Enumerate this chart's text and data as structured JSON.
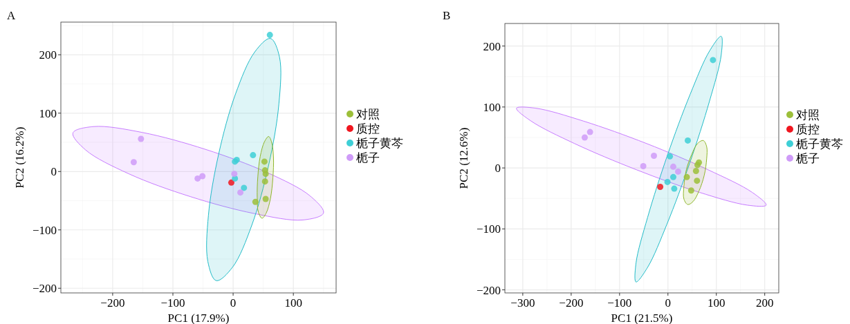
{
  "chart_data": [
    {
      "type": "scatter",
      "title": "A",
      "xlabel": "PC1 (17.9%)",
      "ylabel": "PC2 (16.2%)",
      "xlim": [
        -286,
        171
      ],
      "ylim": [
        -208,
        256
      ],
      "xticks": [
        -200,
        -100,
        0,
        100
      ],
      "yticks": [
        -200,
        -100,
        0,
        100,
        200
      ],
      "grid": true,
      "legend": "right",
      "series": [
        {
          "type": "area",
          "marker": "none",
          "color": "#c77cff",
          "x": [
            150,
            116,
            35,
            -71,
            -173,
            -245,
            -266,
            -232,
            -151,
            -46,
            57,
            128
          ],
          "values": [
            -71,
            -83,
            -72,
            -43,
            -4,
            37,
            66,
            77,
            67,
            38,
            -2,
            -42
          ]
        },
        {
          "type": "area",
          "marker": "none",
          "color": "#22bcc8",
          "x": [
            62,
            77,
            76,
            59,
            31,
            -1,
            -28,
            -42,
            -41,
            -24,
            4,
            36
          ],
          "values": [
            228,
            196,
            116,
            11,
            -92,
            -164,
            -187,
            -154,
            -75,
            30,
            133,
            205
          ]
        },
        {
          "type": "area",
          "marker": "none",
          "color": "#8fb62a",
          "x": [
            59,
            64,
            67,
            66,
            62,
            55,
            48,
            42,
            40,
            41,
            45,
            52
          ],
          "values": [
            60,
            50,
            24,
            -11,
            -46,
            -71,
            -80,
            -70,
            -44,
            -9,
            26,
            51
          ]
        },
        {
          "name": "对照",
          "marker": "circle",
          "color": "#9cbf3a",
          "x": [
            52,
            53,
            54,
            53,
            54,
            37
          ],
          "values": [
            17,
            2,
            -4,
            -17,
            -47,
            -52
          ]
        },
        {
          "name": "质控",
          "marker": "circle",
          "color": "#f0161f",
          "x": [
            -3
          ],
          "values": [
            -19
          ]
        },
        {
          "name": "栀子黄芩",
          "marker": "circle",
          "color": "#3ecfd6",
          "x": [
            61,
            33,
            6,
            3,
            3,
            18
          ],
          "values": [
            234,
            28,
            20,
            17,
            -12,
            -28
          ]
        },
        {
          "name": "栀子",
          "marker": "circle",
          "color": "#cf9bf8",
          "x": [
            -153,
            -165,
            -59,
            -51,
            2,
            12
          ],
          "values": [
            56,
            16,
            -12,
            -8,
            -4,
            -36
          ]
        }
      ]
    },
    {
      "type": "scatter",
      "title": "B",
      "xlabel": "PC1 (21.5%)",
      "ylabel": "PC2 (12.6%)",
      "xlim": [
        -337,
        229
      ],
      "ylim": [
        -205,
        237
      ],
      "xticks": [
        -300,
        -200,
        -100,
        0,
        100,
        200
      ],
      "yticks": [
        -200,
        -100,
        0,
        100,
        200
      ],
      "grid": true,
      "legend": "right",
      "series": [
        {
          "type": "area",
          "marker": "none",
          "color": "#c77cff",
          "x": [
            203,
            164,
            65,
            -65,
            -193,
            -283,
            -313,
            -273,
            -175,
            -44,
            83,
            174
          ],
          "values": [
            -61,
            -61,
            -40,
            -3,
            40,
            77,
            98,
            98,
            77,
            40,
            -3,
            -40
          ]
        },
        {
          "type": "area",
          "marker": "none",
          "color": "#22bcc8",
          "x": [
            110,
            110,
            86,
            45,
            -2,
            -42,
            -66,
            -66,
            -42,
            -1,
            46,
            86
          ],
          "values": [
            216,
            185,
            110,
            8,
            -92,
            -163,
            -187,
            -156,
            -81,
            21,
            121,
            192
          ]
        },
        {
          "type": "area",
          "marker": "none",
          "color": "#8fb62a",
          "x": [
            73,
            80,
            80,
            75,
            64,
            52,
            41,
            33,
            33,
            38,
            49,
            61
          ],
          "values": [
            45,
            35,
            15,
            -12,
            -38,
            -55,
            -60,
            -51,
            -30,
            -3,
            22,
            40
          ]
        },
        {
          "name": "对照",
          "marker": "circle",
          "color": "#9cbf3a",
          "x": [
            64,
            61,
            58,
            39,
            60,
            48
          ],
          "values": [
            9,
            5,
            -5,
            -15,
            -21,
            -37
          ]
        },
        {
          "name": "质控",
          "marker": "circle",
          "color": "#f0161f",
          "x": [
            -16
          ],
          "values": [
            -31
          ]
        },
        {
          "name": "栀子黄芩",
          "marker": "circle",
          "color": "#3ecfd6",
          "x": [
            93,
            41,
            4,
            11,
            -1,
            13
          ],
          "values": [
            177,
            45,
            19,
            -15,
            -23,
            -34
          ]
        },
        {
          "name": "栀子",
          "marker": "circle",
          "color": "#cf9bf8",
          "x": [
            -161,
            -172,
            -29,
            -51,
            11,
            21
          ],
          "values": [
            59,
            50,
            20,
            3,
            2,
            -6
          ]
        }
      ]
    }
  ]
}
